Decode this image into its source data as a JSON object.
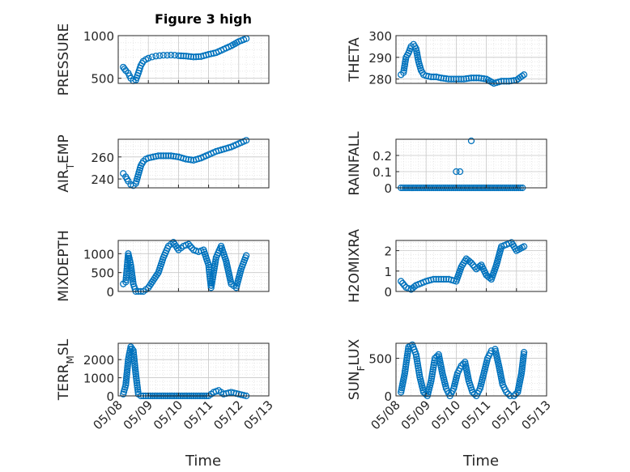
{
  "figure": {
    "title": "Figure 3 high",
    "x_label": "Time",
    "x_ticks": [
      "05/08",
      "05/09",
      "05/10",
      "05/11",
      "05/12",
      "05/13"
    ],
    "marker_color": "#0072bd"
  },
  "chart_data": [
    {
      "type": "scatter",
      "ylabel": "PRESSURE",
      "ylim": [
        440,
        1000
      ],
      "yticks": [
        500,
        1000
      ],
      "x": [
        "05/08 04:00",
        "05/08 06:00",
        "05/08 08:00",
        "05/08 10:00",
        "05/08 12:00",
        "05/08 14:00",
        "05/08 16:00",
        "05/08 18:00",
        "05/08 20:00",
        "05/08 22:00",
        "05/09 00:00",
        "05/09 03:00",
        "05/09 06:00",
        "05/09 09:00",
        "05/09 12:00",
        "05/09 15:00",
        "05/09 18:00",
        "05/09 21:00",
        "05/10 00:00",
        "05/10 06:00",
        "05/10 12:00",
        "05/10 18:00",
        "05/11 00:00",
        "05/11 06:00",
        "05/11 12:00",
        "05/11 18:00",
        "05/12 00:00",
        "05/12 06:00"
      ],
      "y": [
        630,
        590,
        560,
        500,
        470,
        480,
        560,
        650,
        700,
        720,
        735,
        750,
        760,
        765,
        770,
        770,
        772,
        770,
        765,
        760,
        750,
        755,
        780,
        800,
        840,
        880,
        930,
        965
      ]
    },
    {
      "type": "scatter",
      "ylabel": "THETA",
      "ylim": [
        278,
        300
      ],
      "yticks": [
        280,
        290,
        300
      ],
      "x": [
        "05/08 04:00",
        "05/08 06:00",
        "05/08 08:00",
        "05/08 10:00",
        "05/08 12:00",
        "05/08 14:00",
        "05/08 16:00",
        "05/08 18:00",
        "05/08 20:00",
        "05/08 22:00",
        "05/09 00:00",
        "05/09 04:00",
        "05/09 08:00",
        "05/09 12:00",
        "05/09 18:00",
        "05/10 00:00",
        "05/10 06:00",
        "05/10 12:00",
        "05/10 18:00",
        "05/11 00:00",
        "05/11 06:00",
        "05/11 12:00",
        "05/11 18:00",
        "05/12 00:00",
        "05/12 06:00"
      ],
      "y": [
        282,
        283,
        290,
        292,
        295,
        296,
        294,
        288,
        284,
        282,
        281.5,
        281,
        281,
        280.5,
        280,
        280,
        280,
        280.5,
        280.5,
        280,
        278,
        279,
        279,
        279.5,
        282
      ]
    },
    {
      "type": "scatter",
      "ylabel": "AIR_TEMP",
      "ylim": [
        232,
        276
      ],
      "yticks": [
        240,
        260
      ],
      "x": [
        "05/08 04:00",
        "05/08 06:00",
        "05/08 08:00",
        "05/08 10:00",
        "05/08 12:00",
        "05/08 14:00",
        "05/08 16:00",
        "05/08 18:00",
        "05/08 20:00",
        "05/08 22:00",
        "05/09 00:00",
        "05/09 04:00",
        "05/09 08:00",
        "05/09 12:00",
        "05/09 18:00",
        "05/10 00:00",
        "05/10 06:00",
        "05/10 12:00",
        "05/10 18:00",
        "05/11 00:00",
        "05/11 06:00",
        "05/11 12:00",
        "05/11 18:00",
        "05/12 00:00",
        "05/12 06:00"
      ],
      "y": [
        245,
        242,
        238,
        235,
        234,
        236,
        244,
        252,
        256,
        258,
        259,
        260,
        261,
        261,
        261,
        260,
        258,
        257,
        259,
        262,
        265,
        267,
        269,
        272,
        275
      ]
    },
    {
      "type": "scatter",
      "ylabel": "RAINFALL",
      "ylim": [
        0,
        0.3
      ],
      "yticks": [
        0,
        0.1,
        0.2
      ],
      "x": [
        "05/10 00:00",
        "05/10 03:00",
        "05/10 12:00"
      ],
      "y": [
        0.1,
        0.1,
        0.29
      ],
      "baseline": {
        "y": 0,
        "x_start": "05/08 04:00",
        "x_end": "05/12 06:00"
      }
    },
    {
      "type": "scatter",
      "ylabel": "MIXDEPTH",
      "ylim": [
        0,
        1350
      ],
      "yticks": [
        0,
        500,
        1000
      ],
      "x": [
        "05/08 04:00",
        "05/08 06:00",
        "05/08 08:00",
        "05/08 10:00",
        "05/08 12:00",
        "05/08 14:00",
        "05/08 16:00",
        "05/08 18:00",
        "05/08 20:00",
        "05/09 00:00",
        "05/09 04:00",
        "05/09 08:00",
        "05/09 12:00",
        "05/09 16:00",
        "05/09 20:00",
        "05/10 00:00",
        "05/10 04:00",
        "05/10 08:00",
        "05/10 12:00",
        "05/10 16:00",
        "05/10 20:00",
        "05/11 00:00",
        "05/11 02:00",
        "05/11 06:00",
        "05/11 10:00",
        "05/11 14:00",
        "05/11 18:00",
        "05/11 22:00",
        "05/12 02:00",
        "05/12 06:00"
      ],
      "y": [
        200,
        250,
        1000,
        700,
        200,
        0,
        0,
        0,
        0,
        100,
        300,
        500,
        900,
        1200,
        1300,
        1100,
        1200,
        1250,
        1100,
        1050,
        1100,
        700,
        100,
        900,
        1200,
        800,
        200,
        100,
        600,
        950
      ]
    },
    {
      "type": "scatter",
      "ylabel": "H2OMIXRA",
      "ylim": [
        0,
        2.5
      ],
      "yticks": [
        0,
        1,
        2
      ],
      "x": [
        "05/08 04:00",
        "05/08 08:00",
        "05/08 12:00",
        "05/08 16:00",
        "05/08 20:00",
        "05/09 00:00",
        "05/09 06:00",
        "05/09 12:00",
        "05/09 18:00",
        "05/10 00:00",
        "05/10 04:00",
        "05/10 08:00",
        "05/10 12:00",
        "05/10 16:00",
        "05/10 20:00",
        "05/11 00:00",
        "05/11 04:00",
        "05/11 08:00",
        "05/11 12:00",
        "05/11 16:00",
        "05/11 20:00",
        "05/12 00:00",
        "05/12 06:00"
      ],
      "y": [
        0.5,
        0.2,
        0.1,
        0.3,
        0.4,
        0.5,
        0.6,
        0.6,
        0.6,
        0.5,
        1.2,
        1.6,
        1.4,
        1.1,
        1.3,
        0.8,
        0.6,
        1.3,
        2.2,
        2.3,
        2.4,
        2.0,
        2.2
      ]
    },
    {
      "type": "scatter",
      "ylabel": "TERR_MSL",
      "ylim": [
        0,
        2900
      ],
      "yticks": [
        0,
        1000,
        2000
      ],
      "x": [
        "05/08 04:00",
        "05/08 06:00",
        "05/08 08:00",
        "05/08 10:00",
        "05/08 12:00",
        "05/08 14:00",
        "05/08 16:00",
        "05/08 18:00",
        "05/08 20:00",
        "05/09 00:00",
        "05/09 12:00",
        "05/10 00:00",
        "05/10 12:00",
        "05/11 00:00",
        "05/11 04:00",
        "05/11 08:00",
        "05/11 12:00",
        "05/11 18:00",
        "05/12 00:00",
        "05/12 06:00"
      ],
      "y": [
        100,
        600,
        2000,
        2700,
        2500,
        1200,
        100,
        0,
        0,
        0,
        0,
        0,
        0,
        0,
        200,
        300,
        100,
        200,
        100,
        0
      ]
    },
    {
      "type": "scatter",
      "ylabel": "SUN_FLUX",
      "ylim": [
        0,
        700
      ],
      "yticks": [
        0,
        500
      ],
      "x": [
        "05/08 04:00",
        "05/08 07:00",
        "05/08 10:00",
        "05/08 13:00",
        "05/08 16:00",
        "05/08 19:00",
        "05/08 22:00",
        "05/09 01:00",
        "05/09 04:00",
        "05/09 07:00",
        "05/09 10:00",
        "05/09 13:00",
        "05/09 16:00",
        "05/09 19:00",
        "05/09 22:00",
        "05/10 01:00",
        "05/10 04:00",
        "05/10 07:00",
        "05/10 10:00",
        "05/10 13:00",
        "05/10 16:00",
        "05/10 19:00",
        "05/10 22:00",
        "05/11 01:00",
        "05/11 04:00",
        "05/11 07:00",
        "05/11 10:00",
        "05/11 13:00",
        "05/11 16:00",
        "05/11 19:00",
        "05/11 22:00",
        "05/12 01:00",
        "05/12 04:00",
        "05/12 06:00"
      ],
      "y": [
        50,
        300,
        650,
        680,
        550,
        250,
        50,
        0,
        200,
        500,
        550,
        300,
        100,
        0,
        100,
        300,
        400,
        450,
        200,
        50,
        0,
        100,
        300,
        500,
        600,
        620,
        400,
        150,
        50,
        0,
        0,
        50,
        300,
        580
      ]
    }
  ]
}
